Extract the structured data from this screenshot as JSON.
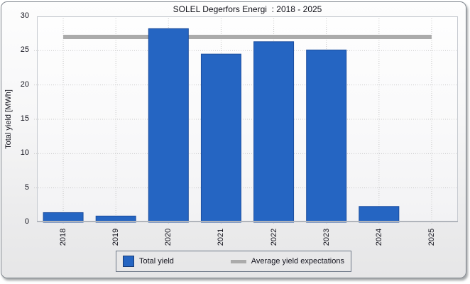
{
  "chart_data": {
    "type": "bar",
    "title": "SOLEL Degerfors Energi  : 2018 - 2025",
    "categories": [
      "2018",
      "2019",
      "2020",
      "2021",
      "2022",
      "2023",
      "2024",
      "2025"
    ],
    "series": [
      {
        "name": "Total yield",
        "type": "bar",
        "values": [
          1.4,
          0.9,
          28.2,
          24.5,
          26.3,
          25.1,
          2.3,
          0
        ]
      },
      {
        "name": "Average yield expectations",
        "type": "reference-line",
        "value": 27
      }
    ],
    "xlabel": "",
    "ylabel": "Total yield [MWh]",
    "ylim": [
      0,
      30
    ],
    "yticks": [
      0,
      5,
      10,
      15,
      20,
      25,
      30
    ],
    "grid": true,
    "legend_position": "bottom",
    "colors": {
      "bar_fill": "#2565c2",
      "bar_border": "#1c4e9f",
      "average_line": "#ababab",
      "grid": "#c9c9c9"
    }
  }
}
